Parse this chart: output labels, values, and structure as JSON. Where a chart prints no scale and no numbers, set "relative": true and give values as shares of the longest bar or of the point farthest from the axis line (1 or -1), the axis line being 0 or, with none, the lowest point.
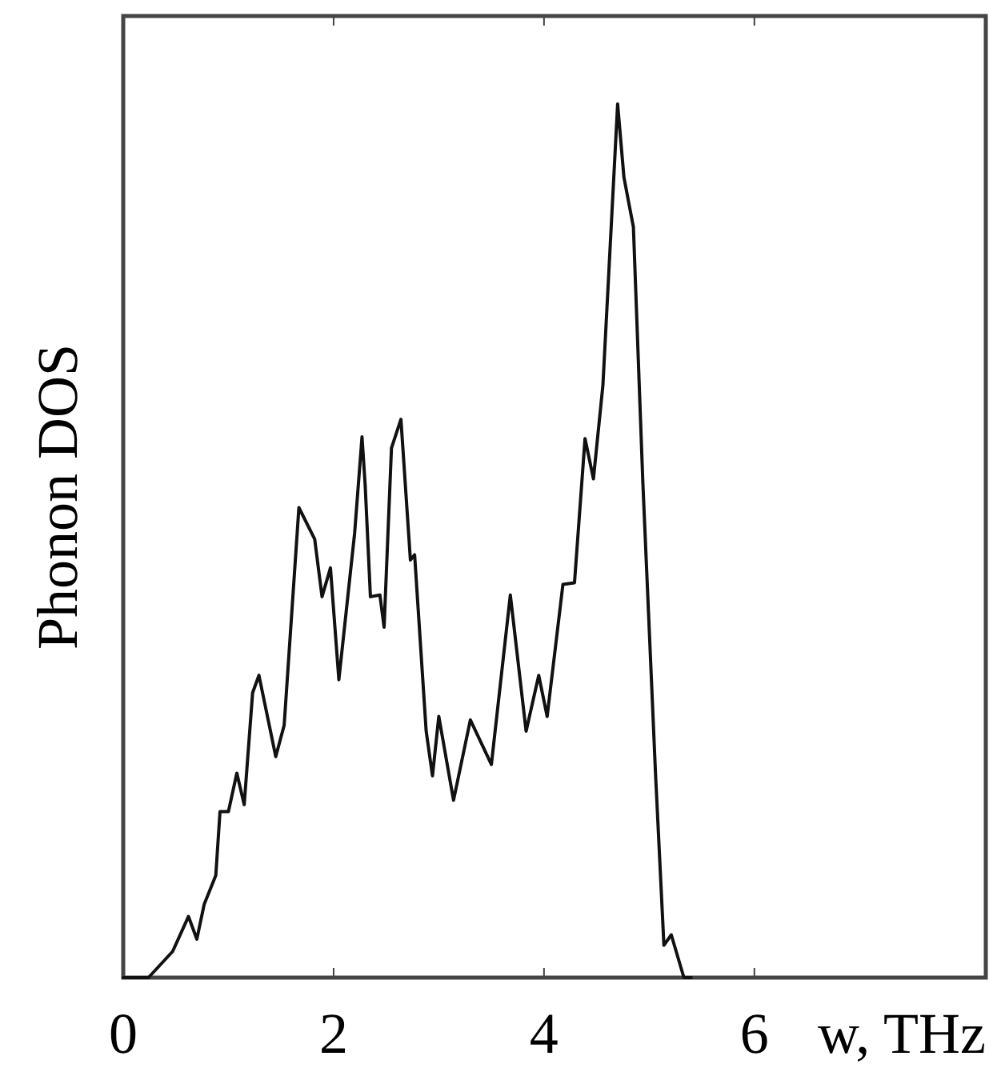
{
  "chart_data": {
    "type": "line",
    "relative": true,
    "ylabel": "Phonon DOS",
    "xlabel": "w, THz",
    "xlim": [
      0,
      8.2
    ],
    "xticks": [
      0,
      2,
      4,
      6
    ],
    "grid": false,
    "marker": "none",
    "line_style": "solid",
    "x": [
      0,
      0.24,
      0.47,
      0.62,
      0.7,
      0.77,
      0.88,
      0.92,
      1.0,
      1.08,
      1.15,
      1.23,
      1.29,
      1.45,
      1.53,
      1.67,
      1.82,
      1.89,
      1.97,
      2.05,
      2.2,
      2.27,
      2.3,
      2.35,
      2.44,
      2.48,
      2.55,
      2.64,
      2.73,
      2.77,
      2.88,
      2.94,
      3.0,
      3.14,
      3.3,
      3.5,
      3.68,
      3.83,
      3.95,
      4.03,
      4.18,
      4.29,
      4.39,
      4.47,
      4.56,
      4.7,
      4.76,
      4.85,
      4.94,
      5.06,
      5.14,
      5.21,
      5.33,
      5.4
    ],
    "series": [
      {
        "color": "#111111",
        "values": [
          0,
          0,
          0.03,
          0.07,
          0.044,
          0.084,
          0.117,
          0.19,
          0.19,
          0.234,
          0.198,
          0.326,
          0.346,
          0.253,
          0.289,
          0.538,
          0.502,
          0.436,
          0.469,
          0.341,
          0.509,
          0.619,
          0.564,
          0.436,
          0.438,
          0.401,
          0.606,
          0.639,
          0.478,
          0.484,
          0.282,
          0.231,
          0.299,
          0.203,
          0.295,
          0.244,
          0.438,
          0.282,
          0.346,
          0.299,
          0.45,
          0.452,
          0.617,
          0.571,
          0.678,
          1.0,
          0.916,
          0.859,
          0.566,
          0.234,
          0.037,
          0.049,
          0,
          0
        ]
      }
    ]
  }
}
